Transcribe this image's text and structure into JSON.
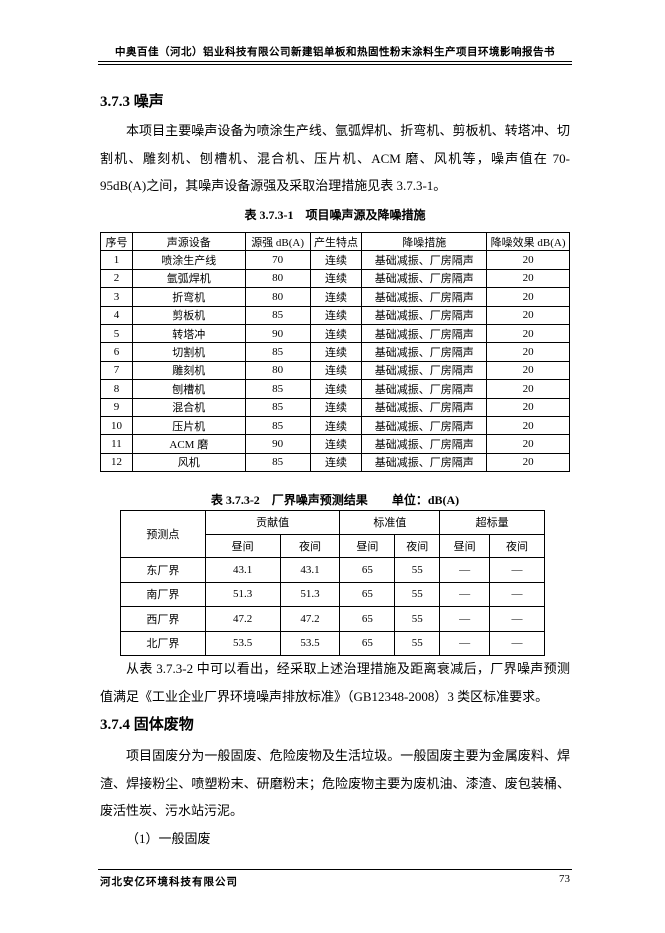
{
  "header": {
    "title": "中奥百佳（河北）铝业科技有限公司新建铝单板和热固性粉末涂料生产项目环境影响报告书"
  },
  "section_373": {
    "heading": "3.7.3 噪声",
    "paragraph": "本项目主要噪声设备为喷涂生产线、氩弧焊机、折弯机、剪板机、转塔冲、切割机、雕刻机、刨槽机、混合机、压片机、ACM 磨、风机等，噪声值在 70-95dB(A)之间，其噪声设备源强及采取治理措施见表 3.7.3-1。"
  },
  "table1": {
    "caption": "表 3.7.3-1　项目噪声源及降噪措施",
    "columns": [
      "序号",
      "声源设备",
      "源强 dB(A)",
      "产生特点",
      "降噪措施",
      "降噪效果 dB(A)"
    ],
    "rows": [
      [
        1,
        "喷涂生产线",
        70,
        "连续",
        "基础减振、厂房隔声",
        20
      ],
      [
        2,
        "氩弧焊机",
        80,
        "连续",
        "基础减振、厂房隔声",
        20
      ],
      [
        3,
        "折弯机",
        80,
        "连续",
        "基础减振、厂房隔声",
        20
      ],
      [
        4,
        "剪板机",
        85,
        "连续",
        "基础减振、厂房隔声",
        20
      ],
      [
        5,
        "转塔冲",
        90,
        "连续",
        "基础减振、厂房隔声",
        20
      ],
      [
        6,
        "切割机",
        85,
        "连续",
        "基础减振、厂房隔声",
        20
      ],
      [
        7,
        "雕刻机",
        80,
        "连续",
        "基础减振、厂房隔声",
        20
      ],
      [
        8,
        "刨槽机",
        85,
        "连续",
        "基础减振、厂房隔声",
        20
      ],
      [
        9,
        "混合机",
        85,
        "连续",
        "基础减振、厂房隔声",
        20
      ],
      [
        10,
        "压片机",
        85,
        "连续",
        "基础减振、厂房隔声",
        20
      ],
      [
        11,
        "ACM 磨",
        90,
        "连续",
        "基础减振、厂房隔声",
        20
      ],
      [
        12,
        "风机",
        85,
        "连续",
        "基础减振、厂房隔声",
        20
      ]
    ]
  },
  "table2": {
    "caption": "表 3.7.3-2　厂界噪声预测结果",
    "unit": "单位：dB(A)",
    "point_header": "预测点",
    "group_headers": [
      "贡献值",
      "标准值",
      "超标量"
    ],
    "sub_headers": [
      "昼间",
      "夜间",
      "昼间",
      "夜间",
      "昼间",
      "夜间"
    ],
    "rows": [
      [
        "东厂界",
        43.1,
        43.1,
        65,
        55,
        "—",
        "—"
      ],
      [
        "南厂界",
        51.3,
        51.3,
        65,
        55,
        "—",
        "—"
      ],
      [
        "西厂界",
        47.2,
        47.2,
        65,
        55,
        "—",
        "—"
      ],
      [
        "北厂界",
        53.5,
        53.5,
        65,
        55,
        "—",
        "—"
      ]
    ]
  },
  "paragraph_after_table": "从表 3.7.3-2 中可以看出，经采取上述治理措施及距离衰减后，厂界噪声预测值满足《工业企业厂界环境噪声排放标准》（GB12348-2008）3 类区标准要求。",
  "section_374": {
    "heading": "3.7.4 固体废物",
    "paragraph": "项目固废分为一般固废、危险废物及生活垃圾。一般固废主要为金属废料、焊渣、焊接粉尘、喷塑粉末、研磨粉末；危险废物主要为废机油、漆渣、废包装桶、废活性炭、污水站污泥。",
    "list_item": "（1）一般固废"
  },
  "footer": {
    "company": "河北安亿环境科技有限公司",
    "page": 73
  }
}
